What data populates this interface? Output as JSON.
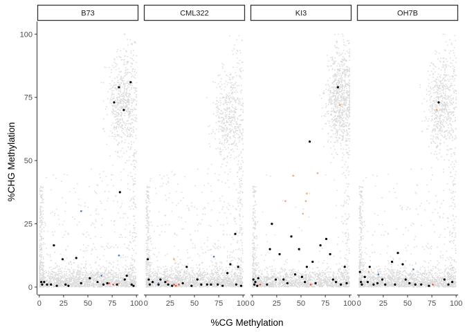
{
  "chart_data": {
    "type": "scatter",
    "facet_style": "small-multiples",
    "xlabel": "%CG Methylation",
    "ylabel": "%CHG Methylation",
    "xlim": [
      -2,
      102
    ],
    "ylim": [
      -3,
      105
    ],
    "x_ticks": [
      0,
      25,
      50,
      75,
      100
    ],
    "y_ticks": [
      0,
      25,
      50,
      75,
      100
    ],
    "grid": false,
    "legend": "none",
    "colors": {
      "background_points": "#bebebe",
      "black_points": "#000000",
      "orange_points": "#f4a582",
      "red_points": "#e8492f",
      "blue_points": "#4a7ab8"
    },
    "background_density": {
      "description": "dense gray cloud of sites",
      "clusters": [
        {
          "name": "low",
          "x_range": [
            0,
            100
          ],
          "y_range": [
            0,
            8
          ],
          "weight": 0.55
        },
        {
          "name": "high",
          "x_center": 85,
          "y_center": 70,
          "weight": 0.2
        },
        {
          "name": "diffuse",
          "x_range": [
            0,
            100
          ],
          "y_range": [
            0,
            100
          ],
          "weight": 0.25
        }
      ]
    },
    "facets": [
      {
        "label": "B73",
        "high_cluster": {
          "x_center": 85,
          "y_center": 73,
          "density": 0.22
        },
        "highlights": [
          {
            "x": 2,
            "y": 2,
            "c": "black"
          },
          {
            "x": 3,
            "y": 1,
            "c": "black"
          },
          {
            "x": 5,
            "y": 2,
            "c": "black"
          },
          {
            "x": 8,
            "y": 1,
            "c": "black"
          },
          {
            "x": 12,
            "y": 1,
            "c": "black"
          },
          {
            "x": 15,
            "y": 16.5,
            "c": "black"
          },
          {
            "x": 18,
            "y": 0.5,
            "c": "black"
          },
          {
            "x": 24,
            "y": 11,
            "c": "black"
          },
          {
            "x": 27,
            "y": 1,
            "c": "black"
          },
          {
            "x": 30,
            "y": 0.5,
            "c": "black"
          },
          {
            "x": 38,
            "y": 11.5,
            "c": "black"
          },
          {
            "x": 43,
            "y": 1.5,
            "c": "black"
          },
          {
            "x": 52,
            "y": 3.5,
            "c": "black"
          },
          {
            "x": 60,
            "y": 2,
            "c": "black"
          },
          {
            "x": 66,
            "y": 1,
            "c": "black"
          },
          {
            "x": 70,
            "y": 1.5,
            "c": "black"
          },
          {
            "x": 77,
            "y": 73,
            "c": "black"
          },
          {
            "x": 82,
            "y": 79,
            "c": "black"
          },
          {
            "x": 83,
            "y": 37.5,
            "c": "black"
          },
          {
            "x": 87,
            "y": 70,
            "c": "black"
          },
          {
            "x": 88,
            "y": 3,
            "c": "black"
          },
          {
            "x": 90,
            "y": 4.5,
            "c": "black"
          },
          {
            "x": 94,
            "y": 81,
            "c": "black"
          },
          {
            "x": 95,
            "y": 1,
            "c": "black"
          },
          {
            "x": 97,
            "y": 0.5,
            "c": "black"
          },
          {
            "x": 80,
            "y": 1,
            "c": "black"
          },
          {
            "x": 43,
            "y": 30,
            "c": "blue"
          },
          {
            "x": 82,
            "y": 12.5,
            "c": "blue"
          },
          {
            "x": 64,
            "y": 4.5,
            "c": "blue"
          },
          {
            "x": 72,
            "y": 1.5,
            "c": "red"
          },
          {
            "x": 76,
            "y": 1,
            "c": "red"
          },
          {
            "x": 82,
            "y": 1.5,
            "c": "orange"
          }
        ]
      },
      {
        "label": "CML322",
        "high_cluster": {
          "x_center": 84,
          "y_center": 67,
          "density": 0.18
        },
        "highlights": [
          {
            "x": 2,
            "y": 11,
            "c": "black"
          },
          {
            "x": 3,
            "y": 3,
            "c": "black"
          },
          {
            "x": 4,
            "y": 1,
            "c": "black"
          },
          {
            "x": 7,
            "y": 2,
            "c": "black"
          },
          {
            "x": 13,
            "y": 1,
            "c": "black"
          },
          {
            "x": 15,
            "y": 3,
            "c": "black"
          },
          {
            "x": 20,
            "y": 2,
            "c": "black"
          },
          {
            "x": 23,
            "y": 1,
            "c": "black"
          },
          {
            "x": 27,
            "y": 0.5,
            "c": "black"
          },
          {
            "x": 38,
            "y": 1.5,
            "c": "black"
          },
          {
            "x": 47,
            "y": 0.5,
            "c": "black"
          },
          {
            "x": 53,
            "y": 3,
            "c": "black"
          },
          {
            "x": 57,
            "y": 1,
            "c": "black"
          },
          {
            "x": 63,
            "y": 1,
            "c": "black"
          },
          {
            "x": 67,
            "y": 1,
            "c": "black"
          },
          {
            "x": 74,
            "y": 1,
            "c": "black"
          },
          {
            "x": 79,
            "y": 0.5,
            "c": "black"
          },
          {
            "x": 84,
            "y": 5.5,
            "c": "black"
          },
          {
            "x": 87,
            "y": 9,
            "c": "black"
          },
          {
            "x": 92,
            "y": 21,
            "c": "black"
          },
          {
            "x": 93,
            "y": 1,
            "c": "black"
          },
          {
            "x": 95,
            "y": 8,
            "c": "black"
          },
          {
            "x": 98,
            "y": 0.5,
            "c": "black"
          },
          {
            "x": 42,
            "y": 8,
            "c": "black"
          },
          {
            "x": 29,
            "y": 1,
            "c": "red"
          },
          {
            "x": 31,
            "y": 0.5,
            "c": "red"
          },
          {
            "x": 34,
            "y": 1,
            "c": "red"
          },
          {
            "x": 29,
            "y": 11,
            "c": "orange"
          },
          {
            "x": 22,
            "y": 2.5,
            "c": "orange"
          },
          {
            "x": 70,
            "y": 12,
            "c": "blue"
          },
          {
            "x": 13,
            "y": 1.5,
            "c": "blue"
          }
        ]
      },
      {
        "label": "KI3",
        "high_cluster": {
          "x_center": 90,
          "y_center": 74,
          "density": 0.32
        },
        "highlights": [
          {
            "x": 1,
            "y": 3,
            "c": "black"
          },
          {
            "x": 2,
            "y": 1,
            "c": "black"
          },
          {
            "x": 3,
            "y": 2,
            "c": "black"
          },
          {
            "x": 5,
            "y": 0.5,
            "c": "black"
          },
          {
            "x": 6,
            "y": 3.5,
            "c": "black"
          },
          {
            "x": 15,
            "y": 1,
            "c": "black"
          },
          {
            "x": 18,
            "y": 15,
            "c": "black"
          },
          {
            "x": 20,
            "y": 25,
            "c": "black"
          },
          {
            "x": 24,
            "y": 3,
            "c": "black"
          },
          {
            "x": 28,
            "y": 13,
            "c": "black"
          },
          {
            "x": 32,
            "y": 3,
            "c": "black"
          },
          {
            "x": 36,
            "y": 1.5,
            "c": "black"
          },
          {
            "x": 40,
            "y": 20,
            "c": "black"
          },
          {
            "x": 44,
            "y": 5,
            "c": "black"
          },
          {
            "x": 48,
            "y": 15,
            "c": "black"
          },
          {
            "x": 51,
            "y": 4,
            "c": "black"
          },
          {
            "x": 54,
            "y": 2,
            "c": "black"
          },
          {
            "x": 56,
            "y": 8,
            "c": "black"
          },
          {
            "x": 59,
            "y": 57.5,
            "c": "black"
          },
          {
            "x": 62,
            "y": 10,
            "c": "black"
          },
          {
            "x": 65,
            "y": 1.5,
            "c": "black"
          },
          {
            "x": 70,
            "y": 16.5,
            "c": "black"
          },
          {
            "x": 76,
            "y": 19,
            "c": "black"
          },
          {
            "x": 80,
            "y": 13,
            "c": "black"
          },
          {
            "x": 83,
            "y": 3,
            "c": "black"
          },
          {
            "x": 86,
            "y": 2,
            "c": "black"
          },
          {
            "x": 88,
            "y": 79,
            "c": "black"
          },
          {
            "x": 91,
            "y": 1,
            "c": "black"
          },
          {
            "x": 95,
            "y": 8,
            "c": "black"
          },
          {
            "x": 97,
            "y": 1.5,
            "c": "black"
          },
          {
            "x": 42,
            "y": 44,
            "c": "orange"
          },
          {
            "x": 52,
            "y": 29,
            "c": "orange"
          },
          {
            "x": 55,
            "y": 34,
            "c": "orange"
          },
          {
            "x": 67,
            "y": 45,
            "c": "orange"
          },
          {
            "x": 34,
            "y": 34,
            "c": "orange"
          },
          {
            "x": 90,
            "y": 72,
            "c": "orange"
          },
          {
            "x": 56,
            "y": 37,
            "c": "orange"
          },
          {
            "x": 8,
            "y": 1,
            "c": "red"
          },
          {
            "x": 60,
            "y": 1,
            "c": "red"
          }
        ]
      },
      {
        "label": "OH7B",
        "high_cluster": {
          "x_center": 84,
          "y_center": 72,
          "density": 0.24
        },
        "highlights": [
          {
            "x": 1,
            "y": 6,
            "c": "black"
          },
          {
            "x": 2,
            "y": 2,
            "c": "black"
          },
          {
            "x": 3,
            "y": 1,
            "c": "black"
          },
          {
            "x": 6,
            "y": 4,
            "c": "black"
          },
          {
            "x": 9,
            "y": 2,
            "c": "black"
          },
          {
            "x": 11,
            "y": 8,
            "c": "black"
          },
          {
            "x": 15,
            "y": 1,
            "c": "black"
          },
          {
            "x": 19,
            "y": 1.5,
            "c": "black"
          },
          {
            "x": 24,
            "y": 3,
            "c": "black"
          },
          {
            "x": 27,
            "y": 1,
            "c": "black"
          },
          {
            "x": 34,
            "y": 10,
            "c": "black"
          },
          {
            "x": 37,
            "y": 1,
            "c": "black"
          },
          {
            "x": 40,
            "y": 13.5,
            "c": "black"
          },
          {
            "x": 45,
            "y": 9,
            "c": "black"
          },
          {
            "x": 52,
            "y": 1.5,
            "c": "black"
          },
          {
            "x": 58,
            "y": 1,
            "c": "black"
          },
          {
            "x": 64,
            "y": 1,
            "c": "black"
          },
          {
            "x": 72,
            "y": 0.5,
            "c": "black"
          },
          {
            "x": 82,
            "y": 73,
            "c": "black"
          },
          {
            "x": 88,
            "y": 3,
            "c": "black"
          },
          {
            "x": 92,
            "y": 1,
            "c": "black"
          },
          {
            "x": 96,
            "y": 2,
            "c": "black"
          },
          {
            "x": 48,
            "y": 3,
            "c": "black"
          },
          {
            "x": 20,
            "y": 5,
            "c": "blue"
          },
          {
            "x": 56,
            "y": 7,
            "c": "blue"
          },
          {
            "x": 10,
            "y": 6,
            "c": "orange"
          },
          {
            "x": 80,
            "y": 70,
            "c": "orange"
          },
          {
            "x": 76,
            "y": 1,
            "c": "red"
          }
        ]
      }
    ]
  }
}
